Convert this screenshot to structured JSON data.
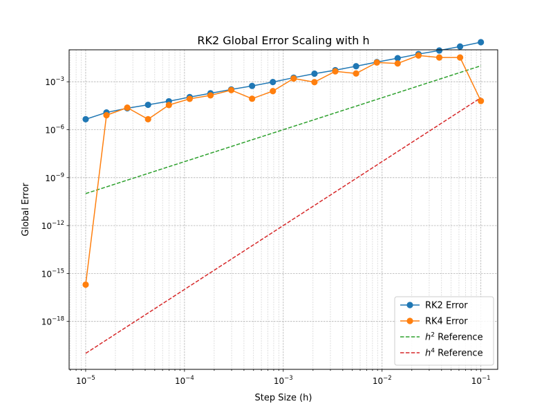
{
  "chart_data": {
    "type": "line",
    "title": "RK2 Global Error Scaling with h",
    "xlabel": "Step Size (h)",
    "ylabel": "Global Error",
    "xscale": "log",
    "yscale": "log",
    "xlim": [
      6.8e-06,
      0.148
    ],
    "ylim": [
      1e-21,
      0.1
    ],
    "x_ticks": [
      {
        "value": 1e-05,
        "base": "10",
        "exp": "−5"
      },
      {
        "value": 0.0001,
        "base": "10",
        "exp": "−4"
      },
      {
        "value": 0.001,
        "base": "10",
        "exp": "−3"
      },
      {
        "value": 0.01,
        "base": "10",
        "exp": "−2"
      },
      {
        "value": 0.1,
        "base": "10",
        "exp": "−1"
      }
    ],
    "y_ticks": [
      {
        "value": 1e-18,
        "base": "10",
        "exp": "−18"
      },
      {
        "value": 1e-15,
        "base": "10",
        "exp": "−15"
      },
      {
        "value": 1e-12,
        "base": "10",
        "exp": "−12"
      },
      {
        "value": 1e-09,
        "base": "10",
        "exp": "−9"
      },
      {
        "value": 1e-06,
        "base": "10",
        "exp": "−6"
      },
      {
        "value": 0.001,
        "base": "10",
        "exp": "−3"
      }
    ],
    "grid": true,
    "legend_position": "lower-right",
    "x": [
      1e-05,
      1.624e-05,
      2.637e-05,
      4.281e-05,
      6.952e-05,
      0.0001129,
      0.0001833,
      0.0002976,
      0.0004833,
      0.0007848,
      0.001274,
      0.002069,
      0.00336,
      0.005456,
      0.008859,
      0.01438,
      0.02336,
      0.03793,
      0.06158,
      0.1
    ],
    "series": [
      {
        "name": "RK2 Error",
        "style": "line-marker",
        "color": "#1f77b4",
        "values": [
          4.5e-06,
          1.2e-05,
          2.2e-05,
          3.6e-05,
          6e-05,
          0.00011,
          0.00019,
          0.00033,
          0.00055,
          0.00096,
          0.0018,
          0.0032,
          0.0053,
          0.0094,
          0.017,
          0.03,
          0.054,
          0.091,
          0.16,
          0.3
        ]
      },
      {
        "name": "RK4 Error",
        "style": "line-marker",
        "color": "#ff7f0e",
        "values": [
          2e-16,
          8e-06,
          2.4e-05,
          4.5e-06,
          3.5e-05,
          8.5e-05,
          0.00014,
          0.0003,
          8.7e-05,
          0.00026,
          0.0016,
          0.00095,
          0.0045,
          0.0033,
          0.016,
          0.014,
          0.044,
          0.033,
          0.033,
          6.3e-05
        ]
      },
      {
        "name": "$h^2$ Reference",
        "legend_base": "h",
        "legend_sup": "2",
        "legend_rest": " Reference",
        "style": "dashed",
        "color": "#2ca02c",
        "x": [
          1e-05,
          0.1
        ],
        "values": [
          1e-10,
          0.01
        ]
      },
      {
        "name": "$h^4$ Reference",
        "legend_base": "h",
        "legend_sup": "4",
        "legend_rest": " Reference",
        "style": "dashed",
        "color": "#d62728",
        "x": [
          1e-05,
          0.1
        ],
        "values": [
          1e-20,
          0.0001
        ]
      }
    ]
  }
}
